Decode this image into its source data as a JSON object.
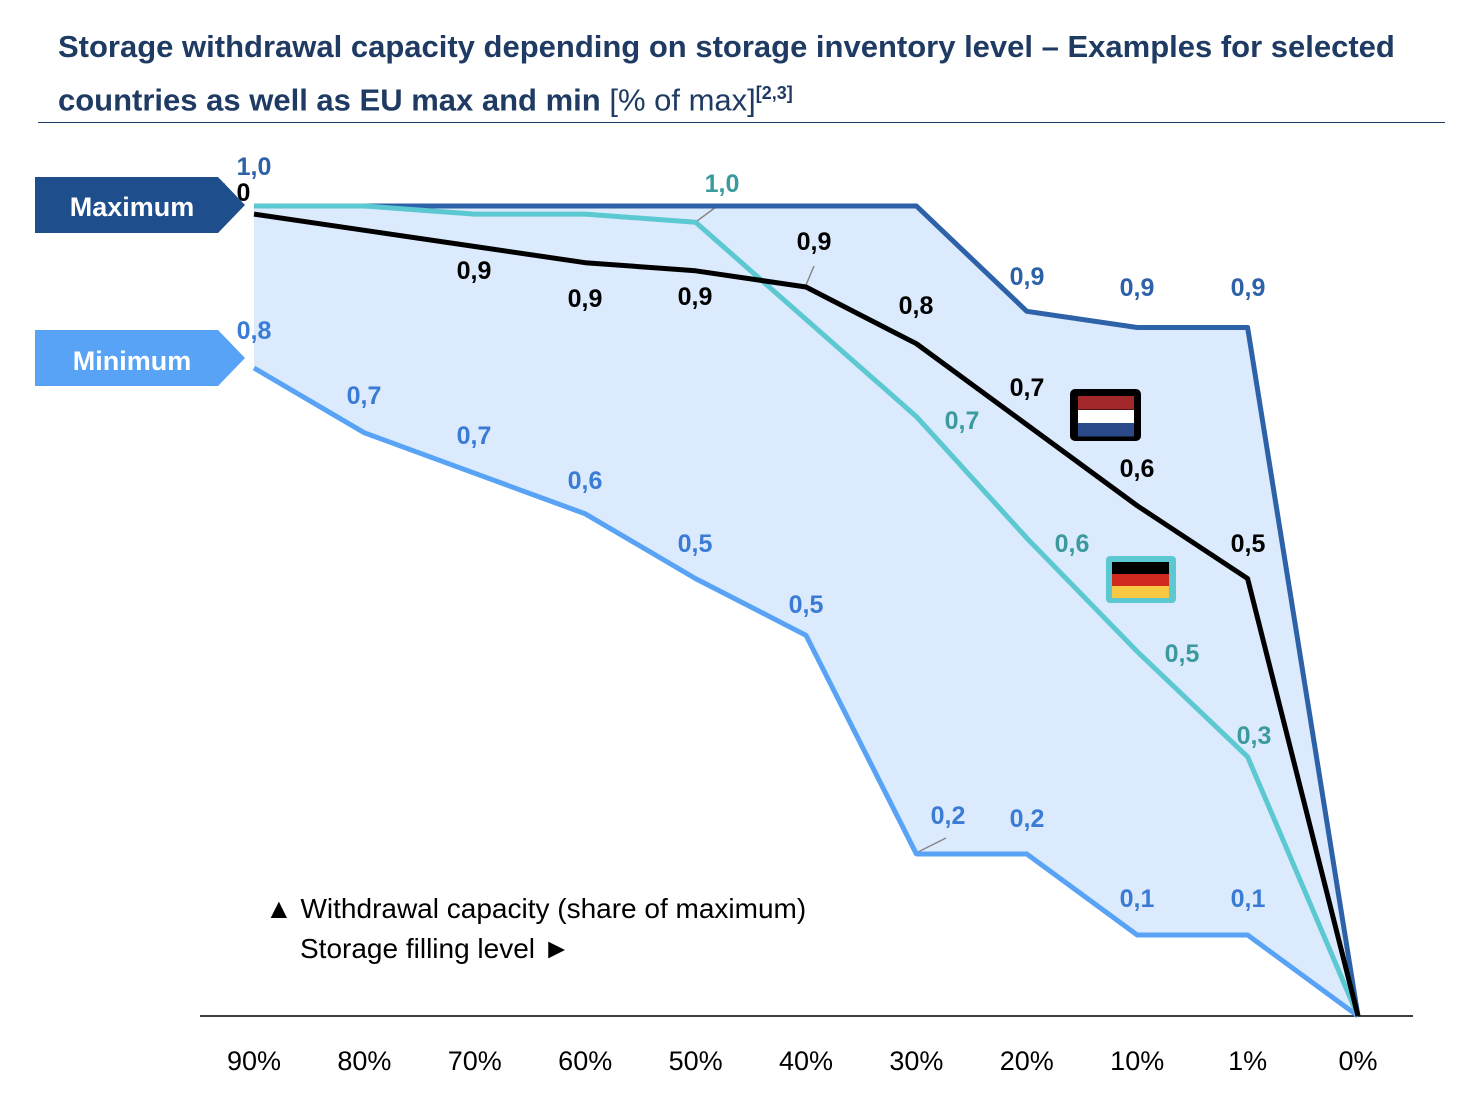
{
  "title": {
    "main": "Storage withdrawal capacity depending on storage inventory level – Examples for selected countries as well as EU max and min",
    "unit": "[% of max]",
    "footnote": "[2,3]"
  },
  "legend": {
    "y_hint": "▲ Withdrawal capacity (share of maximum)",
    "x_hint": "Storage filling level ►",
    "max_tag": "Maximum",
    "min_tag": "Minimum"
  },
  "chart_data": {
    "type": "line",
    "categories": [
      "90%",
      "80%",
      "70%",
      "60%",
      "50%",
      "40%",
      "30%",
      "20%",
      "10%",
      "1%",
      "0%"
    ],
    "ylim": [
      0,
      1
    ],
    "grid": false,
    "series": [
      {
        "name": "Maximum",
        "color": "#2e62a8",
        "fill_between_with": "Minimum",
        "fill_color": "#dbeafc",
        "values": [
          1.0,
          1.0,
          1.0,
          1.0,
          1.0,
          1.0,
          1.0,
          0.87,
          0.85,
          0.85,
          0.0
        ],
        "labels": [
          "1,0",
          null,
          null,
          null,
          null,
          null,
          null,
          "0,9",
          "0,9",
          "0,9",
          null
        ]
      },
      {
        "name": "Minimum",
        "color": "#58a3f5",
        "values": [
          0.8,
          0.72,
          0.67,
          0.62,
          0.54,
          0.47,
          0.2,
          0.2,
          0.1,
          0.1,
          0.0
        ],
        "labels": [
          "0,8",
          "0,7",
          "0,7",
          "0,6",
          "0,5",
          "0,5",
          "0,2",
          "0,2",
          "0,1",
          "0,1",
          null
        ]
      },
      {
        "name": "Netherlands",
        "color": "#000000",
        "flag": "netherlands-flag",
        "values": [
          0.99,
          0.97,
          0.95,
          0.93,
          0.92,
          0.9,
          0.83,
          0.73,
          0.63,
          0.54,
          0.0
        ],
        "labels": [
          "1,0",
          null,
          "0,9",
          "0,9",
          "0,9",
          "0,9",
          "0,8",
          "0,7",
          "0,6",
          "0,5",
          null
        ]
      },
      {
        "name": "Germany",
        "color": "#5bc8d2",
        "flag": "germany-flag",
        "values": [
          1.0,
          1.0,
          0.99,
          0.99,
          0.98,
          0.86,
          0.74,
          0.59,
          0.45,
          0.32,
          0.0
        ],
        "labels": [
          null,
          null,
          null,
          null,
          "1,0",
          null,
          "0,7",
          "0,6",
          "0,5",
          "0,3",
          null
        ]
      }
    ],
    "label_colors": {
      "Maximum": "#2e62a8",
      "Minimum": "#3a7bd5",
      "Netherlands": "#000000",
      "Germany": "#3a9a9e"
    }
  }
}
